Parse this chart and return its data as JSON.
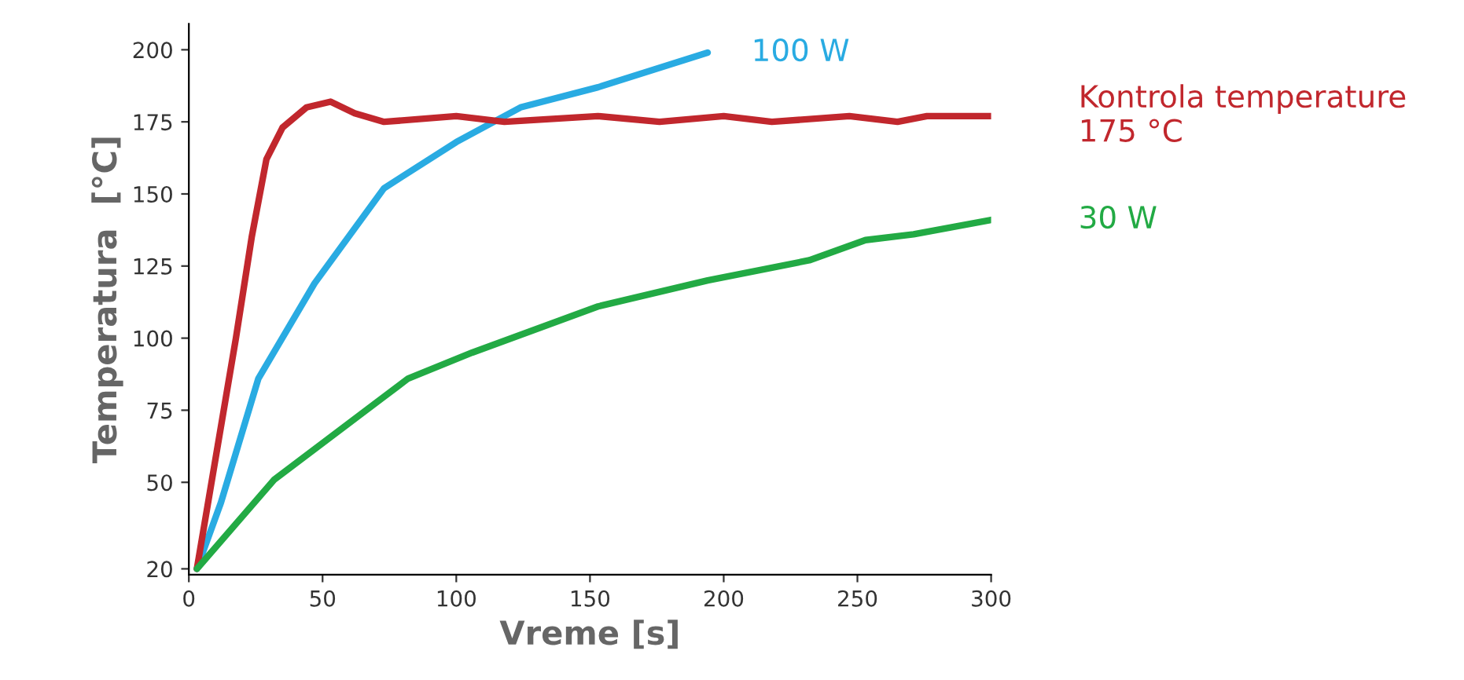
{
  "chart_data": {
    "type": "line",
    "xlabel": "Vreme [s]",
    "ylabel": "Temperatura  [°C]",
    "xlim": [
      0,
      300
    ],
    "xticks": [
      0,
      50,
      100,
      150,
      200,
      250,
      300
    ],
    "ylim": [
      18,
      209
    ],
    "yticks": [
      20,
      50,
      75,
      100,
      125,
      150,
      175,
      200
    ],
    "grid": false,
    "legend": false,
    "marker": "none",
    "line_style": "solid",
    "series": [
      {
        "name": "100 W",
        "color": "#29abe2",
        "x": [
          3,
          12,
          26,
          47,
          73,
          100,
          124,
          153,
          194
        ],
        "values": [
          20,
          43,
          86,
          119,
          152,
          168,
          180,
          187,
          199
        ]
      },
      {
        "name": "Kontrola temperature\n175 °C",
        "color": "#c1272d",
        "x": [
          3,
          17.6,
          23.5,
          29,
          35,
          44,
          53,
          62,
          73,
          100,
          118,
          153,
          176,
          200,
          218,
          247,
          265,
          276,
          300
        ],
        "values": [
          20,
          100,
          135,
          162,
          173,
          180,
          182,
          178,
          175,
          177,
          175,
          177,
          175,
          177,
          175,
          177,
          175,
          177,
          177
        ]
      },
      {
        "name": "30 W",
        "color": "#22aa44",
        "x": [
          3,
          32,
          82,
          106,
          153,
          194,
          232,
          253,
          271,
          300
        ],
        "values": [
          20,
          51,
          86,
          95,
          111,
          120,
          127,
          134,
          136,
          141
        ]
      }
    ]
  }
}
